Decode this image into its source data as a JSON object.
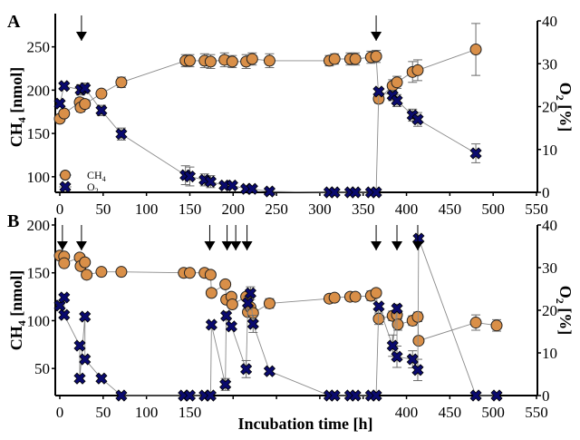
{
  "chart_data": [
    {
      "type": "line",
      "panel": "A",
      "panel_label": "A",
      "xlabel": "",
      "ylabel": "CH4 [nmol]",
      "ylabel_right": "O2 [%]",
      "xlim": [
        0,
        550
      ],
      "xticks": [
        0,
        50,
        100,
        150,
        200,
        250,
        300,
        350,
        400,
        450,
        500,
        550
      ],
      "xtick_labels": [
        "0",
        "50",
        "100",
        "150",
        "200",
        "250",
        "300",
        "350",
        "400",
        "450",
        "500",
        "550"
      ],
      "ylim_left": [
        82,
        280
      ],
      "yticks_left": [
        100,
        150,
        200,
        250
      ],
      "ytick_labels_left": [
        "100",
        "150",
        "200",
        "250"
      ],
      "ylim_right": [
        0,
        40
      ],
      "yticks_right": [
        0,
        10,
        20,
        30,
        40
      ],
      "ytick_labels_right": [
        "0",
        "10",
        "20",
        "30",
        "40"
      ],
      "legend": {
        "position": "bottom-left",
        "entries": [
          "CH4",
          "O2"
        ]
      },
      "arrows_at": [
        25,
        365
      ],
      "series": [
        {
          "name": "CH4",
          "axis": "left",
          "marker": "circle",
          "color": "#d98f48",
          "x": [
            0,
            5,
            23,
            24,
            29,
            48,
            71,
            145,
            150,
            167,
            174,
            190,
            199,
            215,
            222,
            242,
            311,
            317,
            335,
            341,
            359,
            365,
            368,
            384,
            389,
            407,
            413,
            480
          ],
          "y": [
            167,
            173,
            186,
            180,
            184,
            196,
            209,
            234,
            234,
            234,
            233,
            235,
            233,
            233,
            236,
            234,
            234,
            236,
            236,
            236,
            238,
            239,
            190,
            205,
            209,
            221,
            223,
            247
          ],
          "err": [
            0,
            0,
            5,
            5,
            5,
            0,
            6,
            7,
            7,
            8,
            8,
            8,
            7,
            8,
            7,
            8,
            6,
            6,
            7,
            7,
            7,
            7,
            5,
            7,
            7,
            12,
            12,
            30
          ]
        },
        {
          "name": "O2",
          "axis": "right",
          "marker": "cross",
          "color": "#0a0a6e",
          "x": [
            0,
            5,
            24,
            29,
            48,
            71,
            145,
            150,
            167,
            174,
            190,
            199,
            215,
            222,
            242,
            311,
            317,
            335,
            341,
            359,
            365,
            368,
            384,
            389,
            407,
            413,
            480
          ],
          "y": [
            20.7,
            24.8,
            23.9,
            24.3,
            19.1,
            13.6,
            4.0,
            3.7,
            2.9,
            2.5,
            1.6,
            1.6,
            0.8,
            0.8,
            0.2,
            0,
            0,
            0,
            0,
            0,
            0,
            23.5,
            22.6,
            21.4,
            18.0,
            17.0,
            9.1
          ],
          "err": [
            0,
            0,
            1.2,
            1.2,
            1.2,
            1.4,
            2.2,
            2.2,
            1.4,
            1.4,
            0.6,
            0.6,
            0.5,
            0.5,
            0,
            0,
            0,
            0,
            0,
            0,
            0,
            0,
            1.2,
            1.4,
            1.4,
            1.6,
            2.2
          ]
        }
      ]
    },
    {
      "type": "line",
      "panel": "B",
      "panel_label": "B",
      "xlabel": "Incubation time [h]",
      "ylabel": "CH4 [nmol]",
      "ylabel_right": "O2 [%]",
      "xlim": [
        0,
        550
      ],
      "xticks": [
        0,
        50,
        100,
        150,
        200,
        250,
        300,
        350,
        400,
        450,
        500,
        550
      ],
      "xtick_labels": [
        "0",
        "50",
        "100",
        "150",
        "",
        "",
        "",
        "",
        "400",
        "450",
        "500",
        "550"
      ],
      "ylim_left": [
        21.7,
        200
      ],
      "yticks_left": [
        50,
        100,
        150,
        200
      ],
      "ytick_labels_left": [
        "50",
        "100",
        "150",
        "200"
      ],
      "ylim_right": [
        0,
        40
      ],
      "yticks_right": [
        0,
        10,
        20,
        30,
        40
      ],
      "ytick_labels_right": [
        "0",
        "10",
        "20",
        "30",
        "40"
      ],
      "arrows_at": [
        3,
        25,
        173,
        193,
        203,
        216,
        365,
        389,
        413
      ],
      "series": [
        {
          "name": "CH4",
          "axis": "left",
          "marker": "circle",
          "color": "#d98f48",
          "x": [
            0,
            5,
            5,
            23,
            24,
            29,
            31,
            48,
            71,
            143,
            150,
            167,
            174,
            175,
            191,
            192,
            198,
            199,
            215,
            217,
            220,
            223,
            242,
            311,
            317,
            335,
            341,
            359,
            365,
            368,
            384,
            389,
            390,
            407,
            413,
            414,
            480,
            504
          ],
          "y": [
            168,
            167,
            160,
            166,
            157,
            161,
            148,
            151,
            151,
            150,
            150,
            150,
            148,
            129,
            138,
            122,
            125,
            117,
            125,
            109,
            114,
            108,
            118,
            123,
            124,
            125,
            125,
            126,
            129,
            102,
            105,
            106,
            96,
            100,
            104,
            79,
            98,
            95
          ],
          "err": [
            0,
            0,
            0,
            0,
            0,
            0,
            0,
            0,
            0,
            0,
            0,
            0,
            0,
            0,
            0,
            0,
            0,
            0,
            0,
            0,
            0,
            0,
            5,
            0,
            0,
            3,
            3,
            5,
            3,
            6,
            5,
            5,
            6,
            5,
            5,
            0,
            8,
            6
          ]
        },
        {
          "name": "O2",
          "axis": "right",
          "marker": "cross",
          "color": "#0a0a6e",
          "x": [
            0,
            5,
            5,
            23,
            23,
            29,
            29,
            48,
            71,
            143,
            150,
            167,
            174,
            175,
            191,
            192,
            198,
            215,
            217,
            220,
            223,
            242,
            311,
            317,
            335,
            341,
            359,
            365,
            368,
            384,
            389,
            389,
            407,
            413,
            414,
            480,
            504
          ],
          "y": [
            21.1,
            23.0,
            18.9,
            11.7,
            4.0,
            18.5,
            8.5,
            4.0,
            0,
            0,
            0,
            0,
            0,
            16.6,
            2.6,
            18.7,
            16.2,
            6.2,
            21.7,
            24.0,
            16.8,
            5.7,
            0,
            0,
            0,
            0,
            0,
            0,
            20.9,
            11.7,
            20.4,
            9.1,
            8.5,
            6.0,
            36.8,
            0,
            0
          ],
          "err": [
            0,
            0,
            0,
            0,
            0,
            0,
            0,
            0,
            0,
            0,
            0,
            0,
            0,
            0,
            1.4,
            1.0,
            0,
            2.0,
            1.5,
            1.5,
            2.0,
            0,
            0,
            0,
            0,
            0,
            0,
            0,
            0,
            2.5,
            1.0,
            2.5,
            2.0,
            2.5,
            0,
            0,
            0
          ]
        }
      ]
    }
  ]
}
